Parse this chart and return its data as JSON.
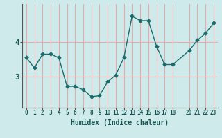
{
  "x": [
    0,
    1,
    2,
    3,
    4,
    5,
    6,
    7,
    8,
    9,
    10,
    11,
    12,
    13,
    14,
    15,
    16,
    17,
    18,
    20,
    21,
    22,
    23
  ],
  "y": [
    3.55,
    3.25,
    3.65,
    3.65,
    3.55,
    2.72,
    2.72,
    2.62,
    2.42,
    2.45,
    2.85,
    3.05,
    3.55,
    4.75,
    4.62,
    4.62,
    3.88,
    3.35,
    3.35,
    3.75,
    4.05,
    4.25,
    4.55
  ],
  "line_color": "#1a6b6b",
  "marker": "D",
  "marker_size": 2.5,
  "bg_color": "#ceeaea",
  "vgrid_color": "#e8aaaa",
  "hgrid_color": "#e8aaaa",
  "xlabel": "Humidex (Indice chaleur)",
  "yticks": [
    3,
    4
  ],
  "ylim": [
    2.1,
    5.1
  ],
  "xlim": [
    -0.5,
    23.5
  ],
  "xtick_labels": [
    "0",
    "1",
    "2",
    "3",
    "4",
    "5",
    "6",
    "7",
    "8",
    "9",
    "10",
    "11",
    "12",
    "13",
    "14",
    "15",
    "16",
    "17",
    "18",
    "20",
    "21",
    "22",
    "23"
  ],
  "xtick_positions": [
    0,
    1,
    2,
    3,
    4,
    5,
    6,
    7,
    8,
    9,
    10,
    11,
    12,
    13,
    14,
    15,
    16,
    17,
    18,
    20,
    21,
    22,
    23
  ]
}
